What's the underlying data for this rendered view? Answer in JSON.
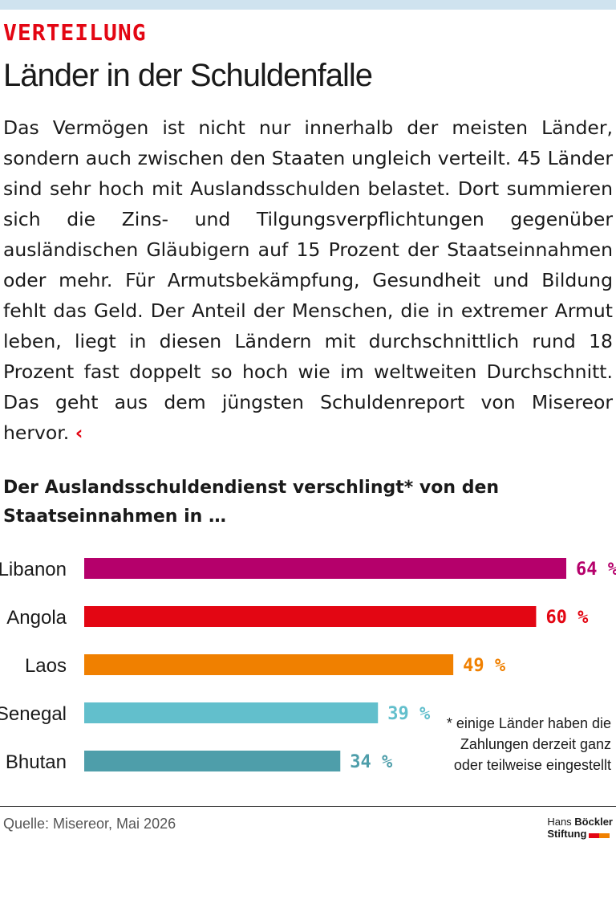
{
  "header": {
    "kicker": "VERTEILUNG",
    "headline": "Länder in der Schuldenfalle",
    "body": "Das Vermögen ist nicht nur innerhalb der meisten Länder, sondern auch zwischen den Staaten ungleich verteilt. 45 Länder sind sehr hoch mit Auslandsschulden belastet. Dort summieren sich die Zins- und Tilgungsverpflichtungen gegenüber ausländischen Gläubigern auf 15 Prozent der Staatseinnahmen oder mehr. Für Armutsbekämpfung, Gesundheit und Bildung fehlt das Geld. Der Anteil der Menschen, die in extremer Armut leben, liegt in diesen Ländern mit durchschnittlich rund 18 Prozent fast doppelt so hoch wie im weltweiten Durchschnitt. Das geht aus dem jüngsten Schuldenreport von Misereor hervor.",
    "end_mark": "‹"
  },
  "chart_data": {
    "type": "bar",
    "orientation": "horizontal",
    "title": "Der Auslandsschuldendienst verschlingt* von den Staatseinnahmen in …",
    "categories": [
      "Libanon",
      "Angola",
      "Laos",
      "Senegal",
      "Bhutan"
    ],
    "values": [
      64,
      60,
      49,
      39,
      34
    ],
    "value_labels": [
      "64 %",
      "60 %",
      "49 %",
      "39 %",
      "34 %"
    ],
    "colors": [
      "#b5006b",
      "#e30613",
      "#f08000",
      "#62bfcc",
      "#4e9eaa"
    ],
    "unit": "%",
    "xlim": [
      0,
      64
    ],
    "grid": false,
    "legend": "none"
  },
  "footnote": {
    "lines": [
      "* einige Länder haben die",
      "Zahlungen derzeit ganz",
      "oder teilweise eingestellt"
    ]
  },
  "footer": {
    "source": "Quelle: Misereor, Mai 2026",
    "logo_line1_normal": "Hans ",
    "logo_line1_bold": "Böckler",
    "logo_line2": "Stiftung",
    "logo_colors": [
      "#e30613",
      "#f08000"
    ]
  }
}
